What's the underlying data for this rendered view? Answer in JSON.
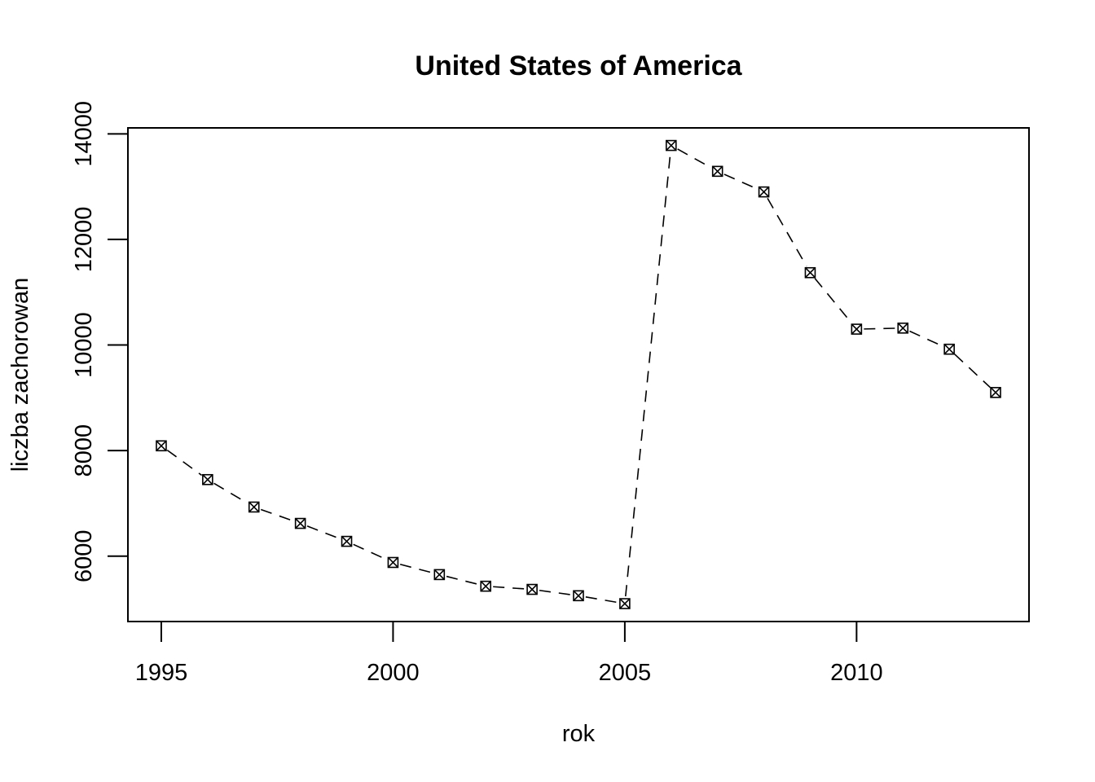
{
  "chart_data": {
    "type": "line",
    "title": "United States of America",
    "xlabel": "rok",
    "ylabel": "liczba zachorowan",
    "x_ticks": [
      1995,
      2000,
      2005,
      2010
    ],
    "y_ticks": [
      6000,
      8000,
      10000,
      12000,
      14000
    ],
    "xlim": [
      1994.28,
      2013.72
    ],
    "ylim": [
      4761,
      14113
    ],
    "marker": "square-with-x",
    "line_style": "dashed",
    "series": [
      {
        "x": [
          1995,
          1996,
          1997,
          1998,
          1999,
          2000,
          2001,
          2002,
          2003,
          2004,
          2005,
          2006,
          2007,
          2008,
          2009,
          2010,
          2011,
          2012,
          2013
        ],
        "values": [
          8090,
          7450,
          6930,
          6620,
          6280,
          5880,
          5650,
          5430,
          5370,
          5250,
          5100,
          13780,
          13290,
          12900,
          11370,
          10300,
          10320,
          9920,
          9100
        ]
      }
    ]
  }
}
